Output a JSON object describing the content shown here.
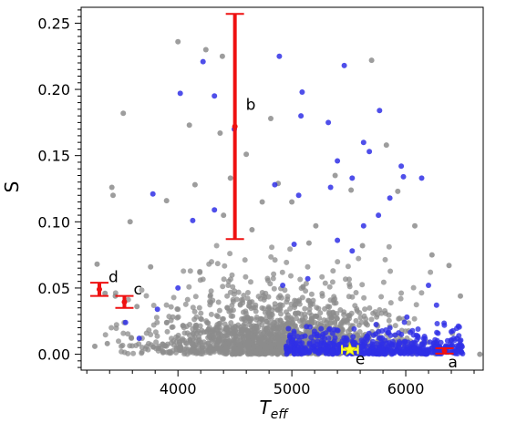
{
  "chart_data": {
    "type": "scatter",
    "title": "",
    "xlabel": "T",
    "xlabel_sub": "eff",
    "ylabel": "S",
    "xlim": [
      3150,
      6680
    ],
    "ylim": [
      -0.012,
      0.262
    ],
    "xticks": [
      4000,
      5000,
      6000
    ],
    "xtick_labels": [
      "4000",
      "5000",
      "6000"
    ],
    "yticks": [
      0.0,
      0.05,
      0.1,
      0.15,
      0.2,
      0.25
    ],
    "ytick_labels": [
      "0.00",
      "0.05",
      "0.10",
      "0.15",
      "0.20",
      "0.25"
    ],
    "grid": false,
    "legend": "none",
    "colors": {
      "gray": "#8c8c8c",
      "blue": "#3030e6",
      "red": "#ee1111",
      "yellow": "#ffff22"
    },
    "series": [
      {
        "color": "gray",
        "points": [
          [
            3520,
            0.182
          ],
          [
            4000,
            0.236
          ],
          [
            4245,
            0.23
          ],
          [
            4390,
            0.225
          ],
          [
            4100,
            0.173
          ],
          [
            4370,
            0.167
          ],
          [
            4600,
            0.151
          ],
          [
            4815,
            0.178
          ],
          [
            4880,
            0.129
          ],
          [
            3420,
            0.126
          ],
          [
            3430,
            0.12
          ],
          [
            3580,
            0.1
          ],
          [
            3900,
            0.116
          ],
          [
            4150,
            0.128
          ],
          [
            4460,
            0.133
          ],
          [
            4740,
            0.115
          ],
          [
            5380,
            0.135
          ],
          [
            5520,
            0.124
          ],
          [
            5700,
            0.222
          ],
          [
            5830,
            0.158
          ],
          [
            5930,
            0.123
          ],
          [
            6080,
            0.097
          ],
          [
            6230,
            0.075
          ],
          [
            6380,
            0.067
          ],
          [
            6480,
            0.044
          ],
          [
            6650,
            0.0
          ],
          [
            5210,
            0.097
          ],
          [
            4650,
            0.094
          ],
          [
            4400,
            0.105
          ],
          [
            3760,
            0.066
          ],
          [
            3290,
            0.068
          ],
          [
            3360,
            0.046
          ],
          [
            3450,
            0.044
          ],
          [
            3640,
            0.036
          ],
          [
            3590,
            0.0125
          ],
          [
            3380,
            0.008
          ],
          [
            3270,
            0.006
          ],
          [
            5000,
            0.115
          ],
          [
            5150,
            0.084
          ],
          [
            5620,
            0.082
          ]
        ]
      },
      {
        "color": "blue",
        "points": [
          [
            4220,
            0.221
          ],
          [
            4020,
            0.197
          ],
          [
            4320,
            0.195
          ],
          [
            4495,
            0.17
          ],
          [
            4890,
            0.225
          ],
          [
            5460,
            0.218
          ],
          [
            5090,
            0.198
          ],
          [
            5080,
            0.18
          ],
          [
            5320,
            0.175
          ],
          [
            5630,
            0.16
          ],
          [
            5770,
            0.184
          ],
          [
            5400,
            0.146
          ],
          [
            5530,
            0.133
          ],
          [
            5680,
            0.153
          ],
          [
            5980,
            0.134
          ],
          [
            6140,
            0.133
          ],
          [
            5960,
            0.142
          ],
          [
            5860,
            0.118
          ],
          [
            4850,
            0.128
          ],
          [
            5340,
            0.126
          ],
          [
            5060,
            0.12
          ],
          [
            5760,
            0.105
          ],
          [
            5630,
            0.097
          ],
          [
            3780,
            0.121
          ],
          [
            4130,
            0.101
          ],
          [
            4320,
            0.109
          ],
          [
            4000,
            0.05
          ],
          [
            3820,
            0.034
          ],
          [
            3540,
            0.024
          ],
          [
            3660,
            0.012
          ],
          [
            5020,
            0.083
          ],
          [
            4920,
            0.052
          ],
          [
            5400,
            0.086
          ],
          [
            5530,
            0.078
          ],
          [
            6200,
            0.052
          ],
          [
            6400,
            0.017
          ],
          [
            6450,
            0.012
          ],
          [
            6270,
            0.037
          ],
          [
            6010,
            0.028
          ],
          [
            5140,
            0.057
          ]
        ]
      }
    ],
    "error_bars": [
      {
        "label": "a",
        "x": 6340,
        "y": 0.0025,
        "ylow": 0.0005,
        "yhigh": 0.0045,
        "color": "red"
      },
      {
        "label": "b",
        "x": 4500,
        "y": 0.172,
        "ylow": 0.087,
        "yhigh": 0.257,
        "color": "red"
      },
      {
        "label": "c",
        "x": 3530,
        "y": 0.0395,
        "ylow": 0.035,
        "yhigh": 0.044,
        "color": "red"
      },
      {
        "label": "d",
        "x": 3310,
        "y": 0.049,
        "ylow": 0.044,
        "yhigh": 0.054,
        "color": "red"
      },
      {
        "label": "e",
        "x": 5510,
        "y": 0.0035,
        "xlow": 5440,
        "xhigh": 5580,
        "color": "yellow",
        "marker": "star"
      }
    ]
  }
}
